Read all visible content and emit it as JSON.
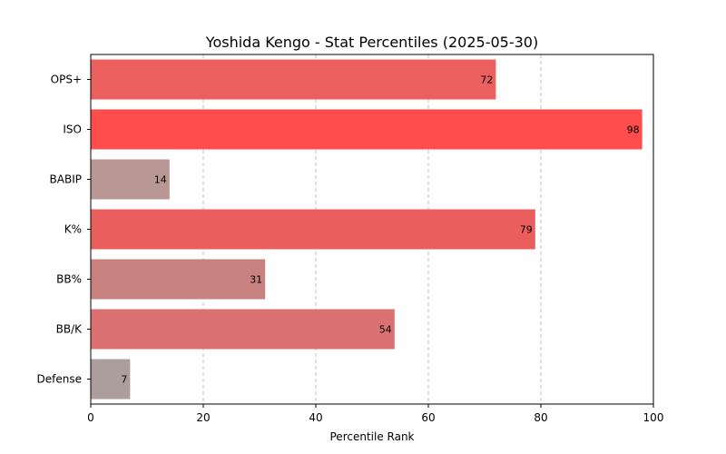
{
  "chart_data": {
    "type": "bar",
    "orientation": "horizontal",
    "title": "Yoshida Kengo - Stat Percentiles (2025-05-30)",
    "xlabel": "Percentile Rank",
    "ylabel": "",
    "xlim": [
      0,
      100
    ],
    "xticks": [
      0,
      20,
      40,
      60,
      80,
      100
    ],
    "grid": "vertical dashed",
    "categories": [
      "OPS+",
      "ISO",
      "BABIP",
      "K%",
      "BB%",
      "BB/K",
      "Defense"
    ],
    "values": [
      72,
      98,
      14,
      79,
      31,
      54,
      7
    ],
    "colors": [
      "#eb5f5f",
      "#ff4d4d",
      "#b89794",
      "#eb5e5e",
      "#c7817e",
      "#db7170",
      "#ad9e9e"
    ]
  }
}
